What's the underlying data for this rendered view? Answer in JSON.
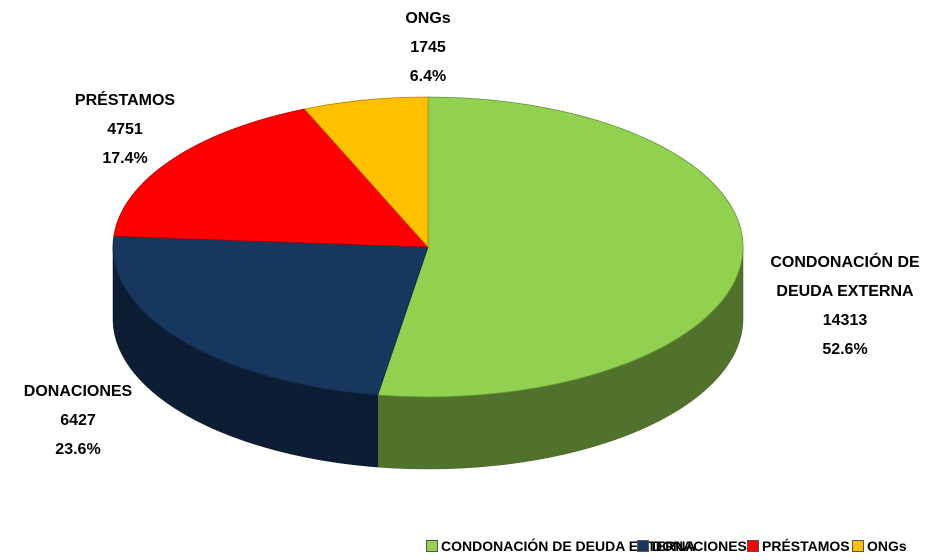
{
  "chart_data": {
    "type": "pie3d",
    "categories": [
      "CONDONACIÓN DE DEUDA EXTERNA",
      "DONACIONES",
      "PRÉSTAMOS",
      "ONGs"
    ],
    "values": [
      14313,
      6427,
      4751,
      1745
    ],
    "percent_labels": [
      "52.6%",
      "23.6%",
      "17.4%",
      "6.4%"
    ],
    "colors": [
      "#92d050",
      "#17375e",
      "#ff0000",
      "#ffc000"
    ],
    "legend": "bottom"
  }
}
